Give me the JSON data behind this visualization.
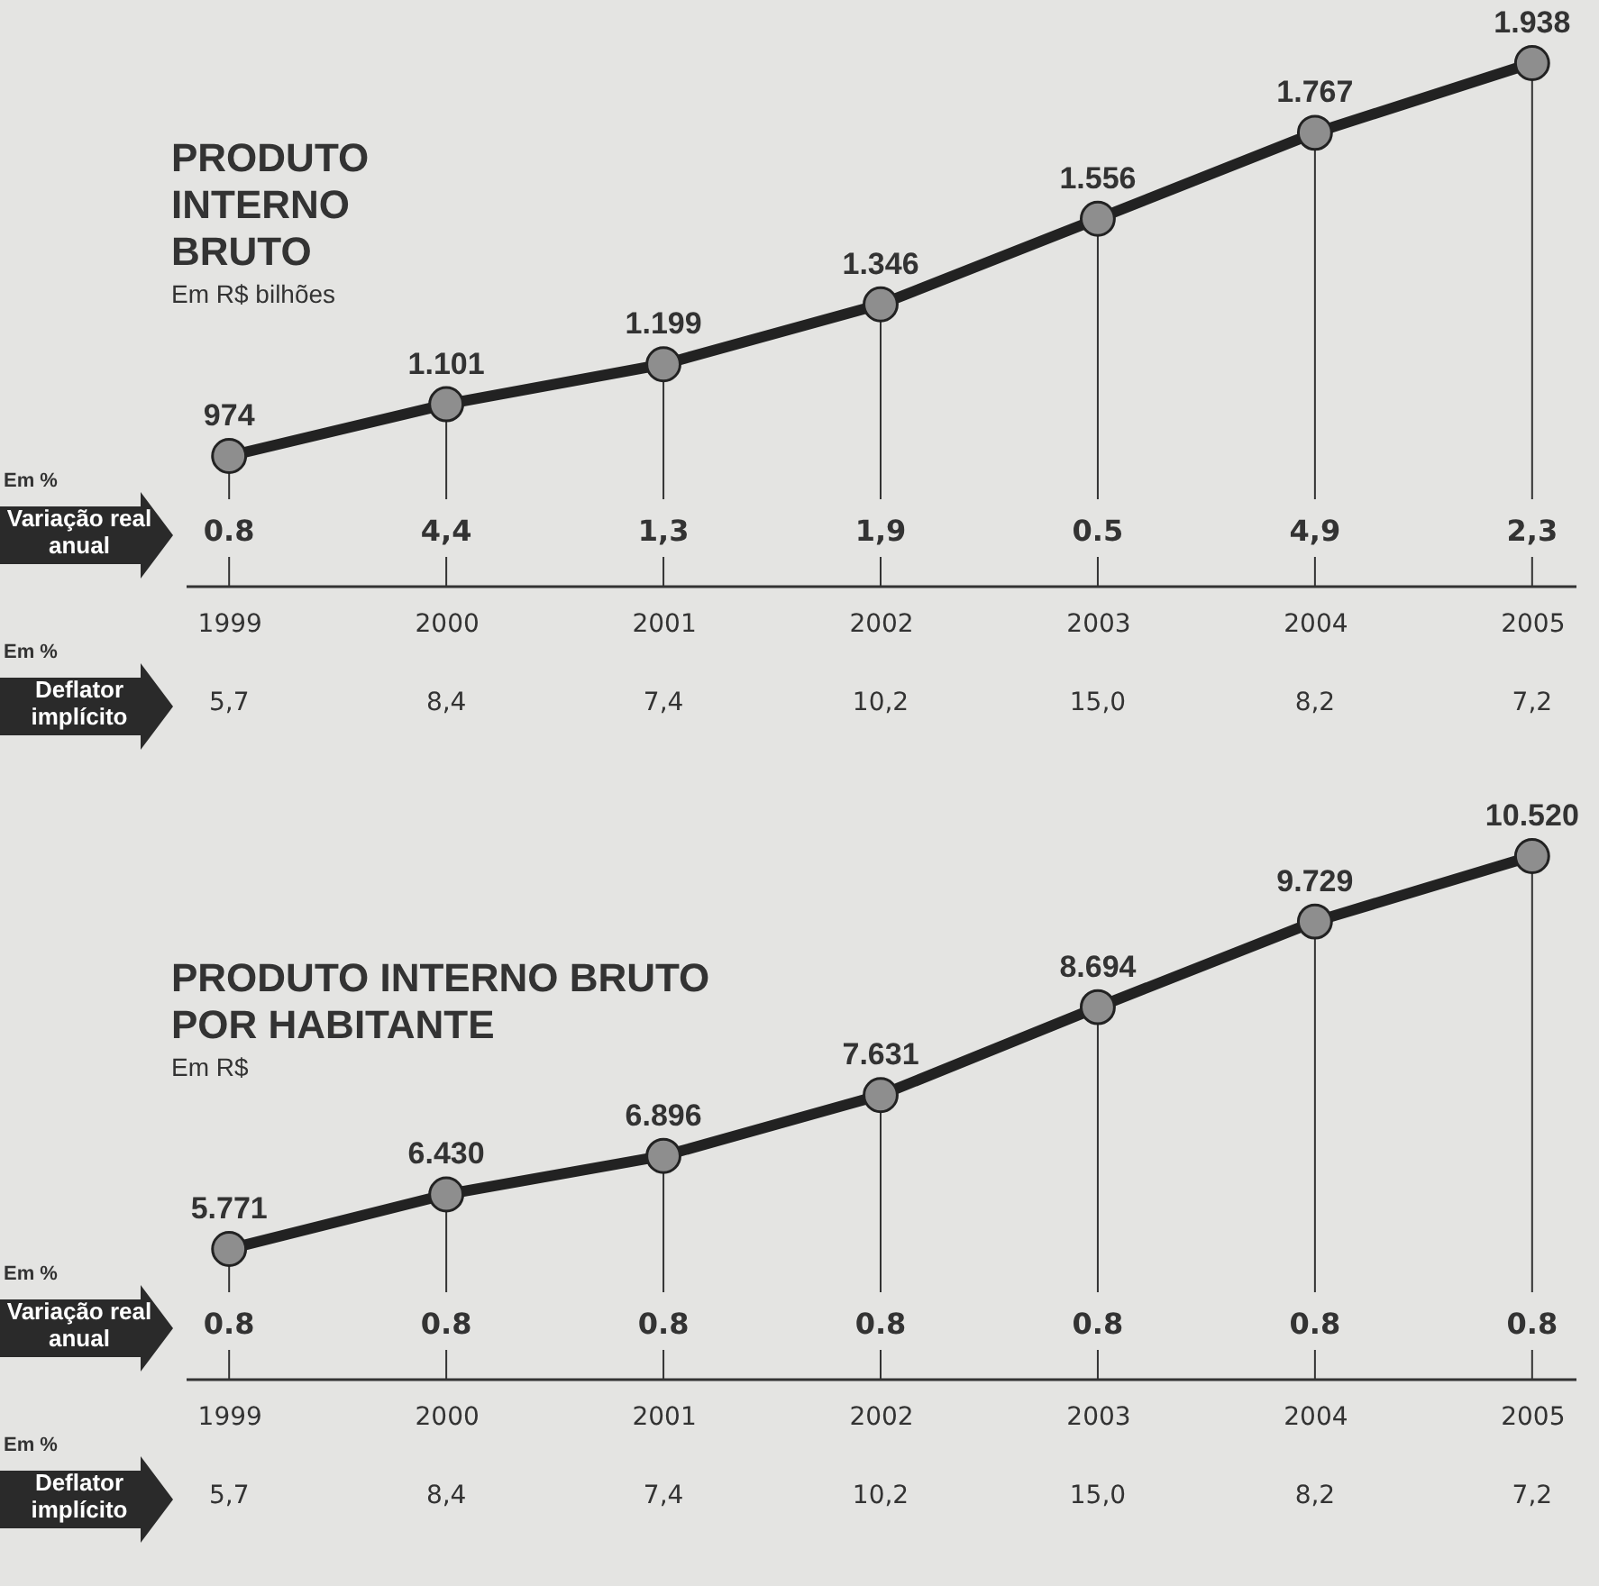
{
  "chart_data": [
    {
      "type": "line",
      "title": "PRODUTO INTERNO BRUTO",
      "subtitle": "Em R$ bilhões",
      "categories": [
        "1999",
        "2000",
        "2001",
        "2002",
        "2003",
        "2004",
        "2005"
      ],
      "marker": "circle",
      "grid": "x",
      "series": [
        {
          "color": "#222222",
          "values": [
            974,
            1101,
            1199,
            1346,
            1556,
            1767,
            1938
          ],
          "value_labels": [
            "974",
            "1.101",
            "1.199",
            "1.346",
            "1.556",
            "1.767",
            "1.938"
          ]
        }
      ],
      "annotations": [
        "Em %",
        "Variação real anual",
        {
          "text": "0.8",
          "x": "1999"
        },
        {
          "text": "4,4",
          "x": "2000"
        },
        {
          "text": "1,3",
          "x": "2001"
        },
        {
          "text": "1,9",
          "x": "2002"
        },
        {
          "text": "0.5",
          "x": "2003"
        },
        {
          "text": "4,9",
          "x": "2004"
        },
        {
          "text": "2,3",
          "x": "2005"
        },
        "Em %",
        "Deflator implícito",
        "5,7",
        "8,4",
        "7,4",
        "10,2",
        "15,0",
        "8,2",
        "7,2"
      ]
    },
    {
      "type": "line",
      "title": "PRODUTO INTERNO BRUTO POR HABITANTE",
      "subtitle": "Em R$",
      "categories": [
        "1999",
        "2000",
        "2001",
        "2002",
        "2003",
        "2004",
        "2005"
      ],
      "marker": "circle",
      "grid": "x",
      "series": [
        {
          "color": "#222222",
          "values": [
            5771,
            6430,
            6896,
            7631,
            8694,
            9729,
            10520
          ],
          "value_labels": [
            "5.771",
            "6.430",
            "6.896",
            "7.631",
            "8.694",
            "9.729",
            "10.520"
          ]
        }
      ],
      "annotations": [
        "Em %",
        "Variação real anual",
        {
          "text": "0.8",
          "x": "1999"
        },
        {
          "text": "0.8",
          "x": "2000"
        },
        {
          "text": "0.8",
          "x": "2001"
        },
        {
          "text": "0.8",
          "x": "2002"
        },
        {
          "text": "0.8",
          "x": "2003"
        },
        {
          "text": "0.8",
          "x": "2004"
        },
        {
          "text": "0.8",
          "x": "2005"
        },
        "Em %",
        "Deflator implícito",
        "5,7",
        "8,4",
        "7,4",
        "10,2",
        "15,0",
        "8,2",
        "7,2"
      ]
    }
  ]
}
